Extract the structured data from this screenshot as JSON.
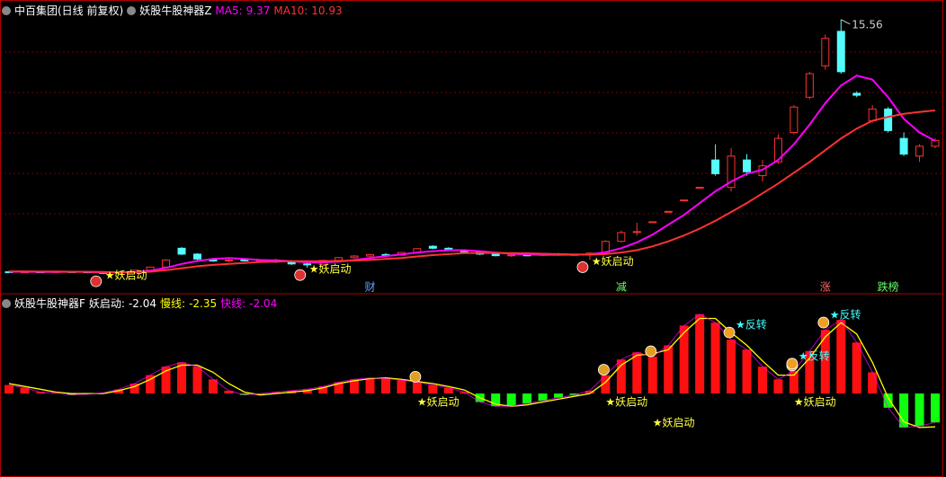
{
  "chart_data": [
    {
      "type": "candlestick",
      "title": "中百集团(日线 前复权)",
      "indicator": "妖股牛股神器Z",
      "up_color": "#ff3232",
      "down_color": "#54fcfc",
      "grid": true,
      "ylim": [
        1.9,
        16.1
      ],
      "open": [
        2.7,
        2.68,
        2.7,
        2.69,
        2.71,
        2.7,
        2.66,
        2.62,
        2.66,
        2.78,
        2.94,
        3.9,
        3.6,
        3.35,
        3.25,
        3.3,
        3.26,
        3.3,
        3.2,
        3.1,
        3.05,
        3.28,
        3.42,
        3.5,
        3.58,
        3.55,
        3.68,
        4.0,
        3.9,
        3.8,
        3.72,
        3.6,
        3.52,
        3.56,
        3.54,
        3.6,
        3.55,
        3.58,
        3.65,
        4.25,
        4.7,
        5.2,
        5.75,
        6.35,
        7.0,
        8.4,
        7.0,
        8.4,
        7.6,
        8.3,
        9.8,
        11.6,
        13.2,
        14.96,
        11.8,
        10.4,
        11.0,
        9.5,
        8.6,
        9.1
      ],
      "high": [
        2.74,
        2.72,
        2.73,
        2.72,
        2.74,
        2.73,
        2.7,
        2.68,
        2.8,
        2.96,
        3.32,
        3.96,
        3.65,
        3.4,
        3.35,
        3.36,
        3.34,
        3.35,
        3.26,
        3.15,
        3.3,
        3.45,
        3.55,
        3.62,
        3.65,
        3.7,
        3.9,
        4.05,
        3.95,
        3.85,
        3.76,
        3.66,
        3.6,
        3.62,
        3.64,
        3.66,
        3.62,
        3.7,
        4.3,
        4.8,
        5.2,
        5.25,
        5.78,
        6.36,
        7.01,
        9.2,
        9.0,
        8.7,
        8.4,
        9.7,
        11.2,
        12.9,
        14.8,
        15.56,
        11.9,
        11.2,
        11.1,
        9.8,
        9.2,
        9.5
      ],
      "low": [
        2.66,
        2.64,
        2.66,
        2.65,
        2.67,
        2.62,
        2.58,
        2.58,
        2.64,
        2.76,
        2.92,
        3.55,
        3.3,
        3.2,
        3.18,
        3.22,
        3.2,
        3.16,
        3.05,
        2.9,
        3.02,
        3.25,
        3.38,
        3.45,
        3.5,
        3.52,
        3.65,
        3.85,
        3.75,
        3.68,
        3.55,
        3.48,
        3.46,
        3.5,
        3.5,
        3.52,
        3.5,
        3.3,
        3.62,
        4.2,
        4.55,
        5.2,
        5.75,
        6.35,
        7.0,
        7.6,
        6.8,
        7.6,
        7.3,
        8.2,
        9.7,
        11.5,
        13.0,
        12.8,
        11.6,
        10.3,
        9.8,
        8.6,
        8.3,
        9.0
      ],
      "close": [
        2.68,
        2.7,
        2.69,
        2.71,
        2.7,
        2.66,
        2.62,
        2.66,
        2.78,
        2.94,
        3.3,
        3.6,
        3.35,
        3.25,
        3.3,
        3.26,
        3.3,
        3.2,
        3.1,
        3.05,
        3.28,
        3.42,
        3.5,
        3.58,
        3.55,
        3.68,
        3.88,
        3.9,
        3.8,
        3.72,
        3.6,
        3.52,
        3.56,
        3.54,
        3.6,
        3.55,
        3.58,
        3.65,
        4.25,
        4.7,
        4.75,
        5.25,
        5.78,
        6.36,
        7.01,
        7.7,
        8.6,
        7.8,
        8.1,
        9.5,
        11.1,
        12.8,
        14.6,
        12.9,
        11.7,
        11.0,
        9.9,
        8.7,
        9.1,
        9.4
      ],
      "series": [
        {
          "name": "MA5:",
          "color": "#ff00ff",
          "values": [
            2.7,
            2.7,
            2.69,
            2.69,
            2.7,
            2.69,
            2.67,
            2.66,
            2.68,
            2.75,
            2.9,
            3.1,
            3.25,
            3.35,
            3.4,
            3.35,
            3.3,
            3.28,
            3.24,
            3.18,
            3.18,
            3.22,
            3.3,
            3.4,
            3.5,
            3.58,
            3.68,
            3.75,
            3.8,
            3.8,
            3.75,
            3.68,
            3.62,
            3.58,
            3.56,
            3.56,
            3.57,
            3.58,
            3.7,
            3.9,
            4.2,
            4.6,
            5.1,
            5.6,
            6.2,
            6.8,
            7.3,
            7.7,
            7.9,
            8.4,
            9.2,
            10.2,
            11.3,
            12.2,
            12.7,
            12.5,
            11.6,
            10.5,
            9.8,
            9.37
          ]
        },
        {
          "name": "MA10:",
          "color": "#ff3232",
          "values": [
            2.72,
            2.72,
            2.71,
            2.71,
            2.7,
            2.7,
            2.69,
            2.68,
            2.68,
            2.7,
            2.78,
            2.88,
            2.98,
            3.05,
            3.1,
            3.15,
            3.2,
            3.22,
            3.24,
            3.24,
            3.24,
            3.25,
            3.27,
            3.3,
            3.35,
            3.4,
            3.48,
            3.55,
            3.6,
            3.65,
            3.66,
            3.66,
            3.65,
            3.64,
            3.62,
            3.6,
            3.58,
            3.57,
            3.6,
            3.68,
            3.8,
            4.0,
            4.25,
            4.55,
            4.9,
            5.3,
            5.75,
            6.2,
            6.7,
            7.2,
            7.75,
            8.3,
            8.9,
            9.5,
            10.0,
            10.4,
            10.6,
            10.75,
            10.85,
            10.93
          ]
        }
      ],
      "signals": [
        null,
        null,
        null,
        null,
        null,
        null,
        "★妖启动",
        null,
        null,
        null,
        null,
        null,
        null,
        null,
        null,
        null,
        null,
        null,
        null,
        "★妖启动",
        null,
        null,
        null,
        null,
        null,
        null,
        null,
        null,
        null,
        null,
        null,
        null,
        null,
        null,
        null,
        null,
        null,
        "★妖启动",
        null,
        null,
        null,
        null,
        null,
        null,
        null,
        null,
        null,
        null,
        null,
        null,
        null,
        null,
        null,
        null,
        null,
        null,
        null,
        null,
        null,
        null
      ],
      "events": [
        null,
        null,
        null,
        null,
        null,
        null,
        null,
        null,
        null,
        null,
        null,
        null,
        null,
        null,
        null,
        null,
        null,
        null,
        null,
        null,
        null,
        null,
        null,
        {
          "text": "财",
          "color": "#5aa0ff"
        },
        null,
        null,
        null,
        null,
        null,
        null,
        null,
        null,
        null,
        null,
        null,
        null,
        null,
        null,
        null,
        {
          "text": "减",
          "color": "#66ff66"
        },
        null,
        null,
        null,
        null,
        null,
        null,
        null,
        null,
        null,
        null,
        null,
        null,
        {
          "text": "涨",
          "color": "#ff6666"
        },
        null,
        null,
        null,
        {
          "text": "跌榜",
          "color": "#66ff66"
        },
        null,
        null,
        null
      ]
    },
    {
      "type": "bar",
      "title": "妖股牛股神器F",
      "up_color": "#ff1010",
      "down_color": "#10ff10",
      "ylim": [
        -5.7,
        5.9
      ],
      "series": [
        {
          "name": "妖启动:",
          "color": "#ffffff",
          "values": [
            0.6,
            0.4,
            0.1,
            0.05,
            -0.1,
            -0.05,
            0.05,
            0.3,
            0.7,
            1.3,
            1.9,
            2.2,
            1.9,
            1.0,
            0.2,
            -0.1,
            0.0,
            0.1,
            0.2,
            0.3,
            0.5,
            0.8,
            1.0,
            1.1,
            1.05,
            0.95,
            0.8,
            0.6,
            0.4,
            0.1,
            -0.6,
            -0.9,
            -0.9,
            -0.7,
            -0.5,
            -0.3,
            -0.1,
            0.2,
            1.3,
            2.4,
            2.9,
            2.6,
            3.4,
            4.8,
            5.6,
            5.0,
            3.8,
            3.1,
            1.9,
            1.0,
            1.6,
            3.0,
            4.5,
            5.2,
            3.6,
            1.5,
            -1.0,
            -2.4,
            -2.3,
            -2.04
          ]
        },
        {
          "name": "慢线:",
          "color": "#ffff00",
          "values": [
            0.7,
            0.5,
            0.3,
            0.1,
            0.0,
            0.0,
            0.0,
            0.2,
            0.5,
            1.0,
            1.6,
            2.0,
            2.0,
            1.5,
            0.7,
            0.1,
            -0.1,
            0.0,
            0.1,
            0.2,
            0.4,
            0.7,
            0.9,
            1.05,
            1.1,
            1.0,
            0.85,
            0.7,
            0.5,
            0.25,
            -0.3,
            -0.75,
            -0.9,
            -0.8,
            -0.6,
            -0.4,
            -0.2,
            0.0,
            0.8,
            2.0,
            2.7,
            2.8,
            3.1,
            4.3,
            5.3,
            5.3,
            4.3,
            3.4,
            2.3,
            1.3,
            1.3,
            2.5,
            4.0,
            5.0,
            4.2,
            2.2,
            -0.3,
            -2.0,
            -2.4,
            -2.35
          ]
        },
        {
          "name": "快线:",
          "color": "#ff00ff",
          "values": [
            0.6,
            0.4,
            0.1,
            0.05,
            -0.1,
            -0.05,
            0.05,
            0.3,
            0.7,
            1.3,
            1.9,
            2.2,
            1.9,
            1.0,
            0.2,
            -0.1,
            0.0,
            0.1,
            0.2,
            0.3,
            0.5,
            0.8,
            1.0,
            1.1,
            1.05,
            0.95,
            0.8,
            0.6,
            0.4,
            0.1,
            -0.6,
            -0.9,
            -0.9,
            -0.7,
            -0.5,
            -0.3,
            -0.1,
            0.2,
            1.3,
            2.4,
            2.9,
            2.6,
            3.4,
            4.8,
            5.6,
            5.0,
            3.8,
            3.1,
            1.9,
            1.0,
            1.6,
            3.0,
            4.5,
            5.2,
            3.6,
            1.5,
            -1.0,
            -2.4,
            -2.3,
            -2.04
          ]
        }
      ],
      "signals": [
        null,
        null,
        null,
        null,
        null,
        null,
        null,
        null,
        null,
        null,
        null,
        null,
        null,
        null,
        null,
        null,
        null,
        null,
        null,
        null,
        null,
        null,
        null,
        null,
        null,
        null,
        "★妖启动",
        null,
        null,
        null,
        null,
        null,
        null,
        null,
        null,
        null,
        null,
        null,
        "★妖启动",
        null,
        null,
        "★妖启动",
        null,
        null,
        null,
        null,
        null,
        null,
        null,
        null,
        "★妖启动",
        null,
        null,
        null,
        null,
        null,
        null,
        null,
        null,
        null
      ],
      "reversals": [
        null,
        null,
        null,
        null,
        null,
        null,
        null,
        null,
        null,
        null,
        null,
        null,
        null,
        null,
        null,
        null,
        null,
        null,
        null,
        null,
        null,
        null,
        null,
        null,
        null,
        null,
        null,
        null,
        null,
        null,
        null,
        null,
        null,
        null,
        null,
        null,
        null,
        null,
        null,
        null,
        null,
        null,
        null,
        null,
        null,
        null,
        "★反转",
        null,
        null,
        null,
        "★反转",
        null,
        "★反转",
        null,
        null,
        null,
        null,
        null,
        null,
        null
      ]
    }
  ]
}
